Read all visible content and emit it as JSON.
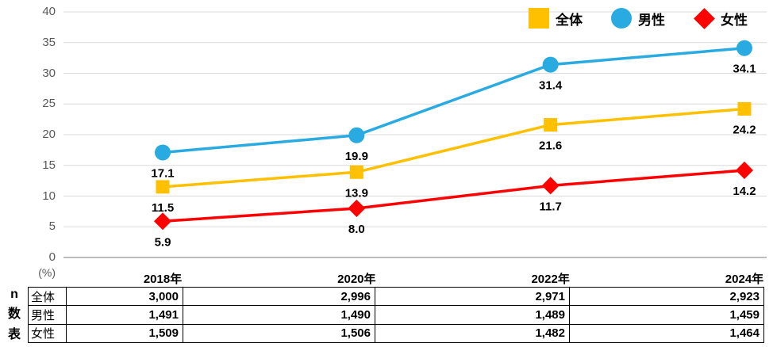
{
  "chart_data": {
    "type": "line",
    "categories": [
      "2018年",
      "2020年",
      "2022年",
      "2024年"
    ],
    "series": [
      {
        "name": "全体",
        "marker": "square",
        "color": "#FFC000",
        "values": [
          11.5,
          13.9,
          21.6,
          24.2
        ]
      },
      {
        "name": "男性",
        "marker": "circle",
        "color": "#29ABE2",
        "values": [
          17.1,
          19.9,
          31.4,
          34.1
        ]
      },
      {
        "name": "女性",
        "marker": "diamond",
        "color": "#FF0000",
        "values": [
          5.9,
          8.0,
          11.7,
          14.2
        ]
      }
    ],
    "unit_label": "(%)",
    "ylim": [
      0,
      40
    ],
    "ytick_step": 5,
    "grid": true,
    "legend_position": "top-right",
    "data_labels": "below-points"
  },
  "colors": {
    "gridline": "#D9D9D9",
    "axis_line": "#A6A6A6",
    "tick_label": "#595959",
    "data_label": "#000000",
    "table_border": "#000000"
  },
  "table": {
    "corner_label": "n数表",
    "row_headers": [
      "全体",
      "男性",
      "女性"
    ],
    "columns": [
      "2018年",
      "2020年",
      "2022年",
      "2024年"
    ],
    "rows": [
      [
        "3,000",
        "2,996",
        "2,971",
        "2,923"
      ],
      [
        "1,491",
        "1,490",
        "1,489",
        "1,459"
      ],
      [
        "1,509",
        "1,506",
        "1,482",
        "1,464"
      ]
    ]
  }
}
